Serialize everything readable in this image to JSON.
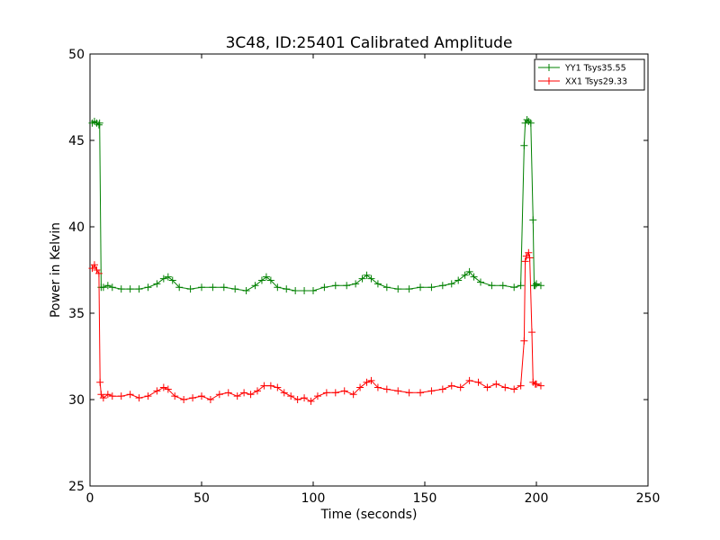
{
  "chart_data": {
    "type": "line",
    "title": "3C48, ID:25401 Calibrated Amplitude",
    "xlabel": "Time (seconds)",
    "ylabel": "Power in Kelvin",
    "xlim": [
      0,
      250
    ],
    "ylim": [
      25,
      50
    ],
    "xticks": [
      0,
      50,
      100,
      150,
      200,
      250
    ],
    "yticks": [
      25,
      30,
      35,
      40,
      45,
      50
    ],
    "grid": false,
    "legend_position": "top-right",
    "marker": "+",
    "series": [
      {
        "name": "YY1 Tsys35.55",
        "color": "#008000",
        "x": [
          1,
          2,
          3,
          4,
          4.3,
          5,
          6,
          8,
          10,
          14,
          18,
          22,
          26,
          30,
          33,
          35,
          37,
          40,
          45,
          50,
          55,
          60,
          65,
          70,
          74,
          77,
          79,
          81,
          84,
          88,
          92,
          96,
          100,
          105,
          110,
          115,
          119,
          122,
          124,
          126,
          129,
          133,
          138,
          143,
          148,
          153,
          158,
          162,
          165,
          168,
          170,
          172,
          175,
          180,
          185,
          190,
          193,
          194.5,
          195,
          195.8,
          196.5,
          197.5,
          198.5,
          199,
          199.5,
          200,
          202
        ],
        "values": [
          46.0,
          46.1,
          46.0,
          45.9,
          46.0,
          36.5,
          36.5,
          36.6,
          36.5,
          36.4,
          36.4,
          36.4,
          36.5,
          36.7,
          37.0,
          37.1,
          36.9,
          36.5,
          36.4,
          36.5,
          36.5,
          36.5,
          36.4,
          36.3,
          36.6,
          36.9,
          37.1,
          36.9,
          36.5,
          36.4,
          36.3,
          36.3,
          36.3,
          36.5,
          36.6,
          36.6,
          36.7,
          37.0,
          37.2,
          37.0,
          36.7,
          36.5,
          36.4,
          36.4,
          36.5,
          36.5,
          36.6,
          36.7,
          36.9,
          37.2,
          37.4,
          37.1,
          36.8,
          36.6,
          36.6,
          36.5,
          36.6,
          44.7,
          46.0,
          46.2,
          46.1,
          46.0,
          40.4,
          36.6,
          36.6,
          36.7,
          36.6
        ]
      },
      {
        "name": "XX1 Tsys29.33",
        "color": "#ff0000",
        "x": [
          1,
          2,
          3,
          4,
          4.5,
          5,
          6,
          8,
          10,
          14,
          18,
          22,
          26,
          30,
          33,
          35,
          38,
          42,
          46,
          50,
          54,
          58,
          62,
          66,
          69,
          72,
          75,
          78,
          81,
          84,
          87,
          90,
          93,
          96,
          99,
          102,
          106,
          110,
          114,
          118,
          121,
          124,
          126,
          129,
          133,
          138,
          143,
          148,
          153,
          158,
          162,
          166,
          170,
          174,
          178,
          182,
          186,
          190,
          193,
          194.5,
          195,
          195.5,
          196.5,
          197,
          198,
          198.5,
          199.5,
          200,
          202
        ],
        "values": [
          37.6,
          37.8,
          37.5,
          37.3,
          31.0,
          30.3,
          30.1,
          30.3,
          30.2,
          30.2,
          30.3,
          30.1,
          30.2,
          30.5,
          30.7,
          30.6,
          30.2,
          30.0,
          30.1,
          30.2,
          30.0,
          30.3,
          30.4,
          30.2,
          30.4,
          30.3,
          30.5,
          30.8,
          30.8,
          30.7,
          30.4,
          30.2,
          30.0,
          30.1,
          29.9,
          30.2,
          30.4,
          30.4,
          30.5,
          30.3,
          30.7,
          31.0,
          31.1,
          30.7,
          30.6,
          30.5,
          30.4,
          30.4,
          30.5,
          30.6,
          30.8,
          30.7,
          31.1,
          31.0,
          30.7,
          30.9,
          30.7,
          30.6,
          30.8,
          33.4,
          38.0,
          38.3,
          38.5,
          38.2,
          33.9,
          31.0,
          30.9,
          30.9,
          30.8
        ]
      }
    ]
  }
}
